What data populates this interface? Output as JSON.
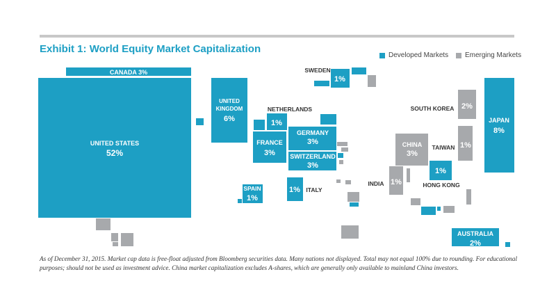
{
  "header": {
    "exhibit": "Exhibit 1:",
    "title": "World Equity Market Capitalization"
  },
  "legend": {
    "developed": "Developed Markets",
    "emerging": "Emerging Markets"
  },
  "colors": {
    "developed": "#1d9fc4",
    "emerging": "#a7a9ac",
    "topbar": "#c8c8c8"
  },
  "chart_data": {
    "type": "treemap-cartogram",
    "title": "World Equity Market Capitalization",
    "unit": "%",
    "legend_labels": [
      "Developed Markets",
      "Emerging Markets"
    ],
    "countries": [
      {
        "name": "UNITED STATES",
        "value": 52,
        "value_label": "52%",
        "group": "developed"
      },
      {
        "name": "CANADA",
        "value": 3,
        "value_label": "3%",
        "group": "developed"
      },
      {
        "name": "UNITED KINGDOM",
        "value": 6,
        "value_label": "6%",
        "group": "developed"
      },
      {
        "name": "SWEDEN",
        "value": 1,
        "value_label": "1%",
        "group": "developed"
      },
      {
        "name": "NETHERLANDS",
        "value": 1,
        "value_label": "1%",
        "group": "developed"
      },
      {
        "name": "FRANCE",
        "value": 3,
        "value_label": "3%",
        "group": "developed"
      },
      {
        "name": "GERMANY",
        "value": 3,
        "value_label": "3%",
        "group": "developed"
      },
      {
        "name": "SWITZERLAND",
        "value": 3,
        "value_label": "3%",
        "group": "developed"
      },
      {
        "name": "SPAIN",
        "value": 1,
        "value_label": "1%",
        "group": "developed"
      },
      {
        "name": "ITALY",
        "value": 1,
        "value_label": "1%",
        "group": "developed"
      },
      {
        "name": "SOUTH KOREA",
        "value": 2,
        "value_label": "2%",
        "group": "emerging"
      },
      {
        "name": "CHINA",
        "value": 3,
        "value_label": "3%",
        "group": "emerging"
      },
      {
        "name": "TAIWAN",
        "value": 1,
        "value_label": "1%",
        "group": "emerging"
      },
      {
        "name": "JAPAN",
        "value": 8,
        "value_label": "8%",
        "group": "developed"
      },
      {
        "name": "HONG KONG",
        "value": 1,
        "value_label": "1%",
        "group": "developed"
      },
      {
        "name": "INDIA",
        "value": 1,
        "value_label": "1%",
        "group": "emerging"
      },
      {
        "name": "AUSTRALIA",
        "value": 2,
        "value_label": "2%",
        "group": "developed"
      }
    ]
  },
  "footnote": "As of December 31, 2015. Market cap data is free-float adjusted from Bloomberg securities data. Many nations not displayed. Total may not equal 100% due to rounding. For educational purposes; should not be used as investment advice. China market capitalization excludes A-shares, which are generally only available to mainland China investors."
}
